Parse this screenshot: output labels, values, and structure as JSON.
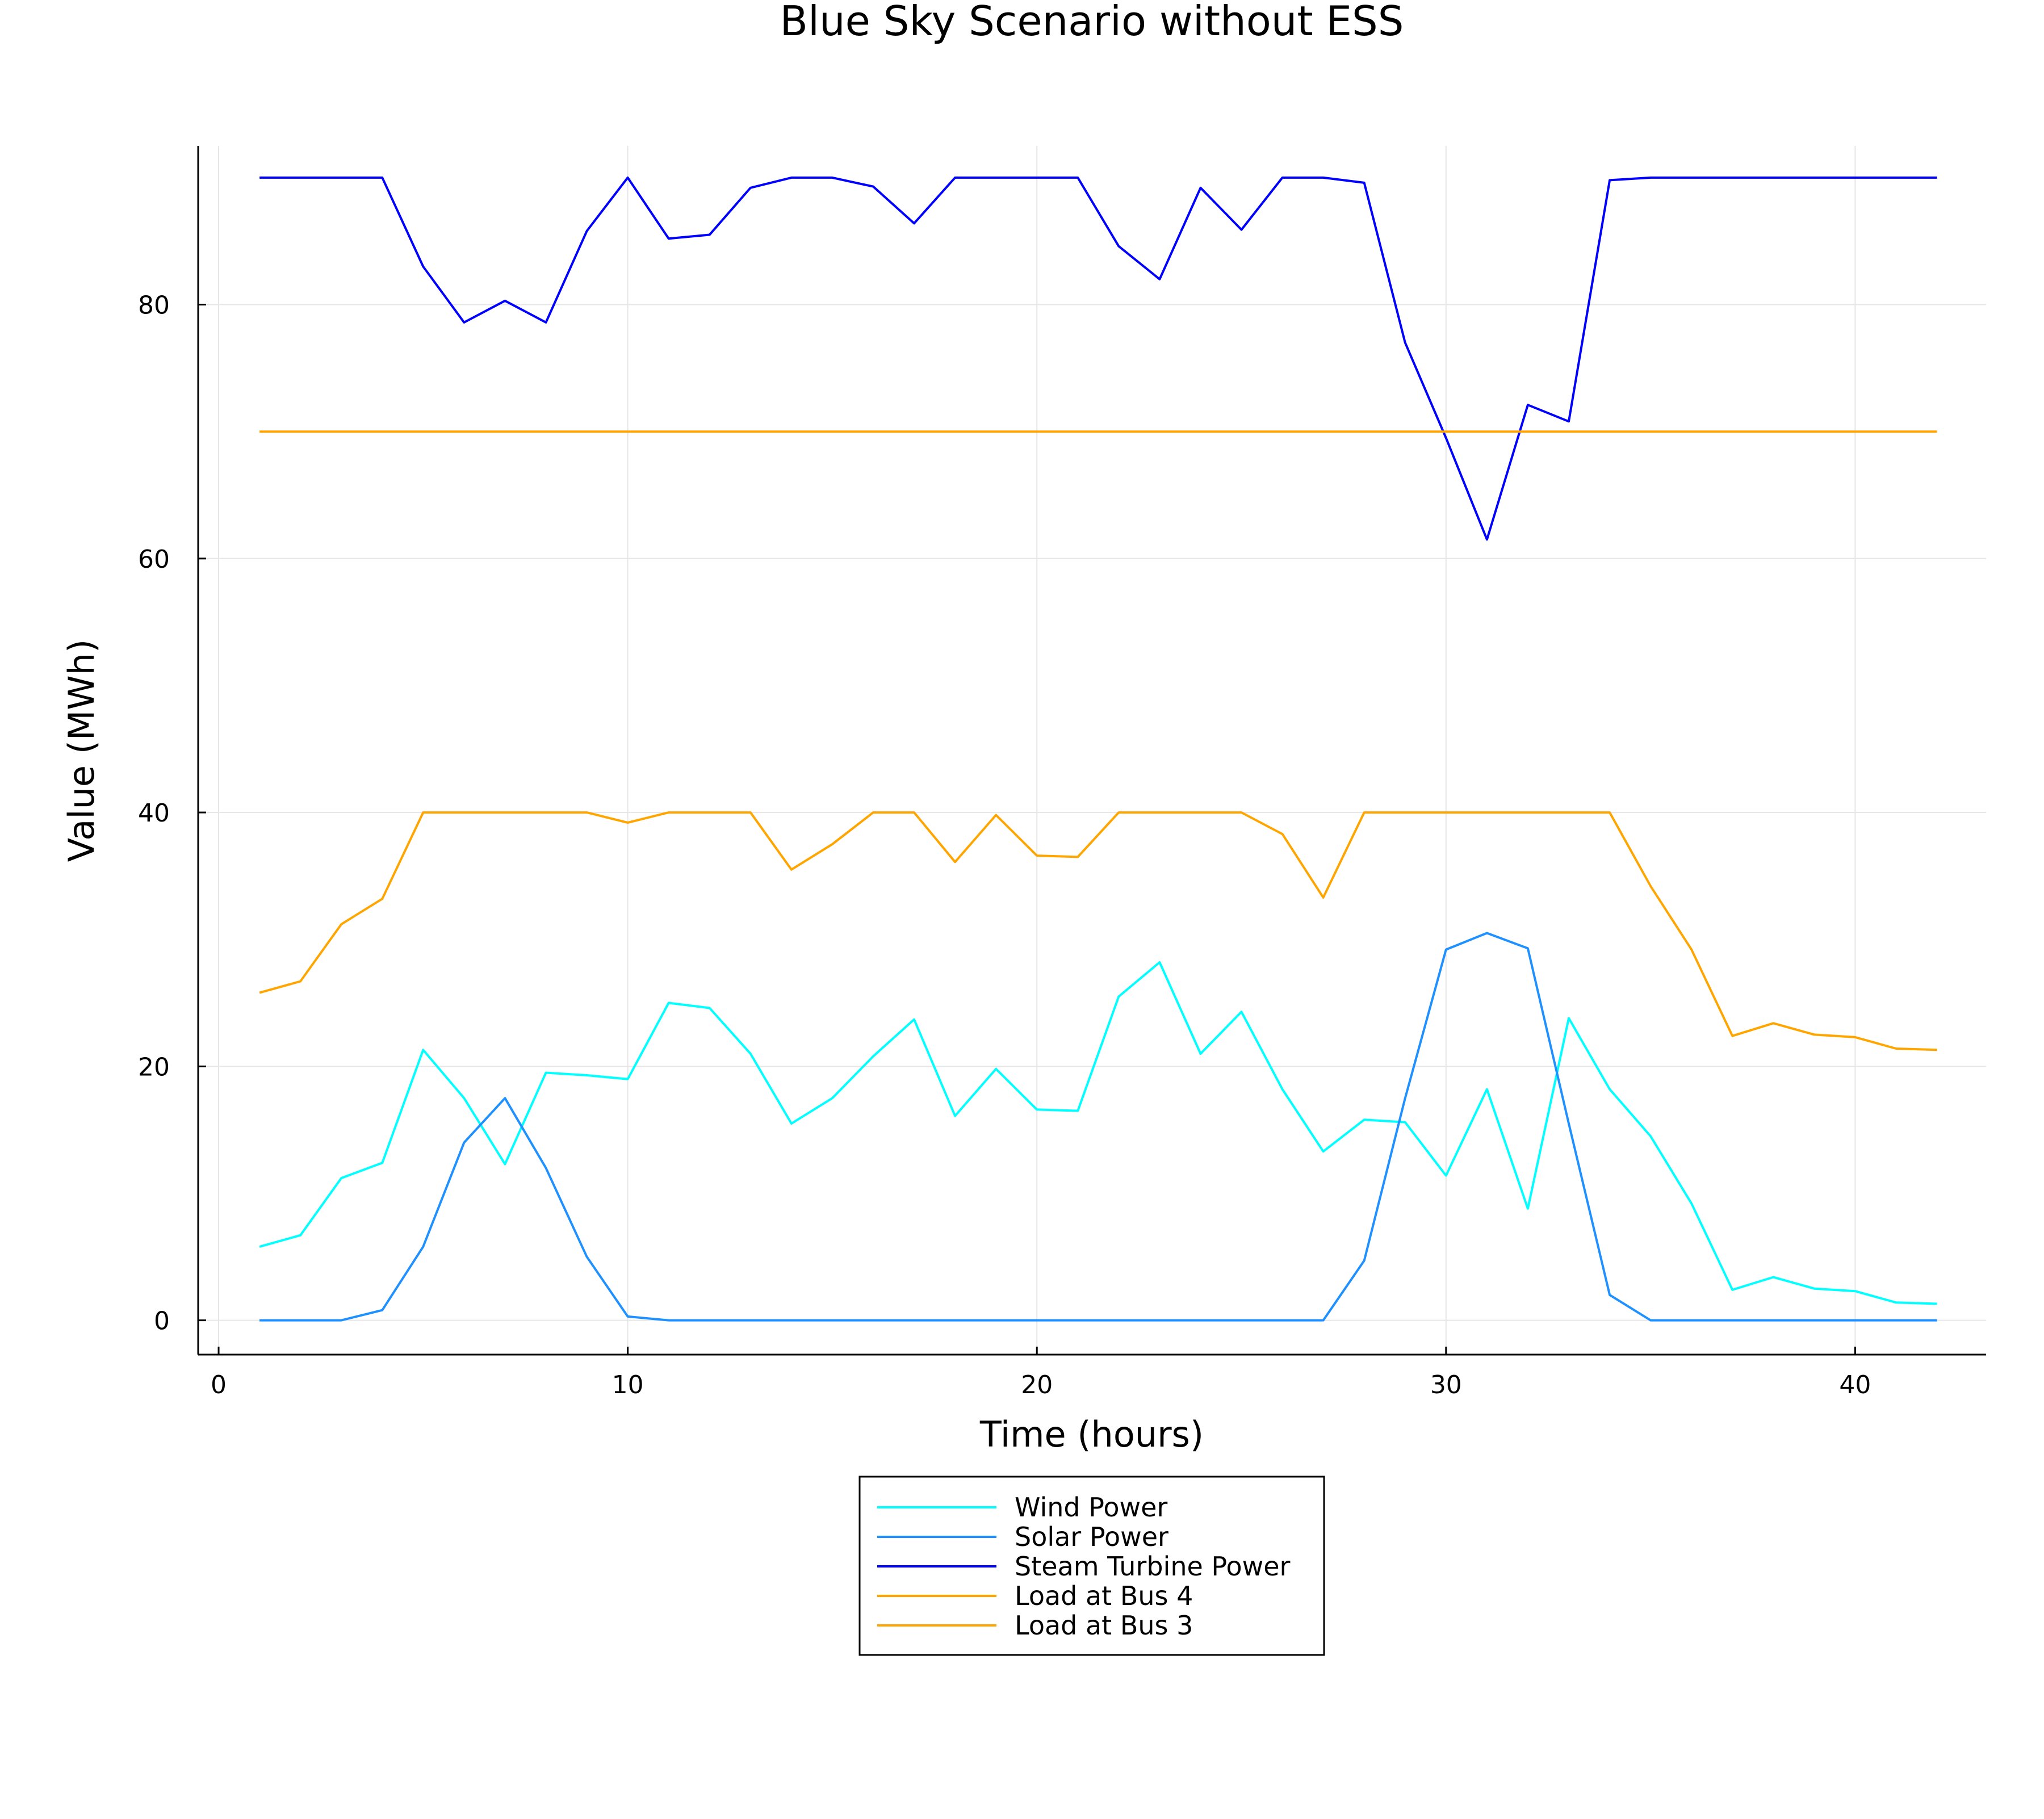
{
  "chart_data": {
    "type": "line",
    "title": "Blue Sky Scenario without ESS",
    "xlabel": "Time (hours)",
    "ylabel": "Value (MWh)",
    "xlim": [
      -0.5,
      43.2
    ],
    "ylim": [
      -2.7,
      92.5
    ],
    "xticks": [
      0,
      10,
      20,
      30,
      40
    ],
    "yticks": [
      0,
      20,
      40,
      60,
      80
    ],
    "grid": true,
    "legend_position": "bottom-center",
    "x": [
      1,
      2,
      3,
      4,
      5,
      6,
      7,
      8,
      9,
      10,
      11,
      12,
      13,
      14,
      15,
      16,
      17,
      18,
      19,
      20,
      21,
      22,
      23,
      24,
      25,
      26,
      27,
      28,
      29,
      30,
      31,
      32,
      33,
      34,
      35,
      36,
      37,
      38,
      39,
      40,
      41,
      42
    ],
    "series": [
      {
        "name": "Wind Power",
        "color": "#00ffff",
        "values": [
          5.8,
          6.7,
          11.2,
          12.4,
          21.3,
          17.5,
          12.3,
          19.5,
          19.3,
          19.0,
          25.0,
          24.6,
          21.0,
          15.5,
          17.5,
          20.8,
          23.7,
          16.1,
          19.8,
          16.6,
          16.5,
          25.5,
          28.2,
          21.0,
          24.3,
          18.2,
          13.3,
          15.8,
          15.6,
          11.4,
          18.2,
          8.8,
          23.8,
          18.2,
          14.5,
          9.2,
          2.4,
          3.4,
          2.5,
          2.3,
          1.4,
          1.3
        ]
      },
      {
        "name": "Solar Power",
        "color": "#1e90ff",
        "values": [
          0,
          0,
          0,
          0.8,
          5.8,
          14.0,
          17.5,
          12.0,
          5.0,
          0.3,
          0,
          0,
          0,
          0,
          0,
          0,
          0,
          0,
          0,
          0,
          0,
          0,
          0,
          0,
          0,
          0,
          0,
          4.7,
          17.5,
          29.2,
          30.5,
          29.3,
          15.5,
          2.0,
          0,
          0,
          0,
          0,
          0,
          0,
          0,
          0
        ]
      },
      {
        "name": "Steam Turbine Power",
        "color": "#0000ff",
        "values": [
          90,
          90,
          90,
          90,
          83,
          78.6,
          80.3,
          78.6,
          85.8,
          90,
          85.2,
          85.5,
          89.2,
          90,
          90,
          89.3,
          86.4,
          90,
          90,
          90,
          90,
          84.6,
          82,
          89.2,
          85.9,
          90,
          90,
          89.6,
          77,
          69.5,
          61.5,
          72.1,
          70.8,
          89.8,
          90,
          90,
          90,
          90,
          90,
          90,
          90,
          90
        ]
      },
      {
        "name": "Load at Bus 4",
        "color": "#ffa500",
        "values": [
          70,
          70,
          70,
          70,
          70,
          70,
          70,
          70,
          70,
          70,
          70,
          70,
          70,
          70,
          70,
          70,
          70,
          70,
          70,
          70,
          70,
          70,
          70,
          70,
          70,
          70,
          70,
          70,
          70,
          70,
          70,
          70,
          70,
          70,
          70,
          70,
          70,
          70,
          70,
          70,
          70,
          70
        ]
      },
      {
        "name": "Load at Bus 3",
        "color": "#ffa500",
        "values": [
          25.8,
          26.7,
          31.2,
          33.2,
          40,
          40,
          40,
          40,
          40,
          39.2,
          40,
          40,
          40,
          35.5,
          37.5,
          40,
          40,
          36.1,
          39.8,
          36.6,
          36.5,
          40,
          40,
          40,
          40,
          38.3,
          33.3,
          40,
          40,
          40,
          40,
          40,
          40,
          40,
          34.2,
          29.2,
          22.4,
          23.4,
          22.5,
          22.3,
          21.4,
          21.3
        ]
      }
    ]
  }
}
